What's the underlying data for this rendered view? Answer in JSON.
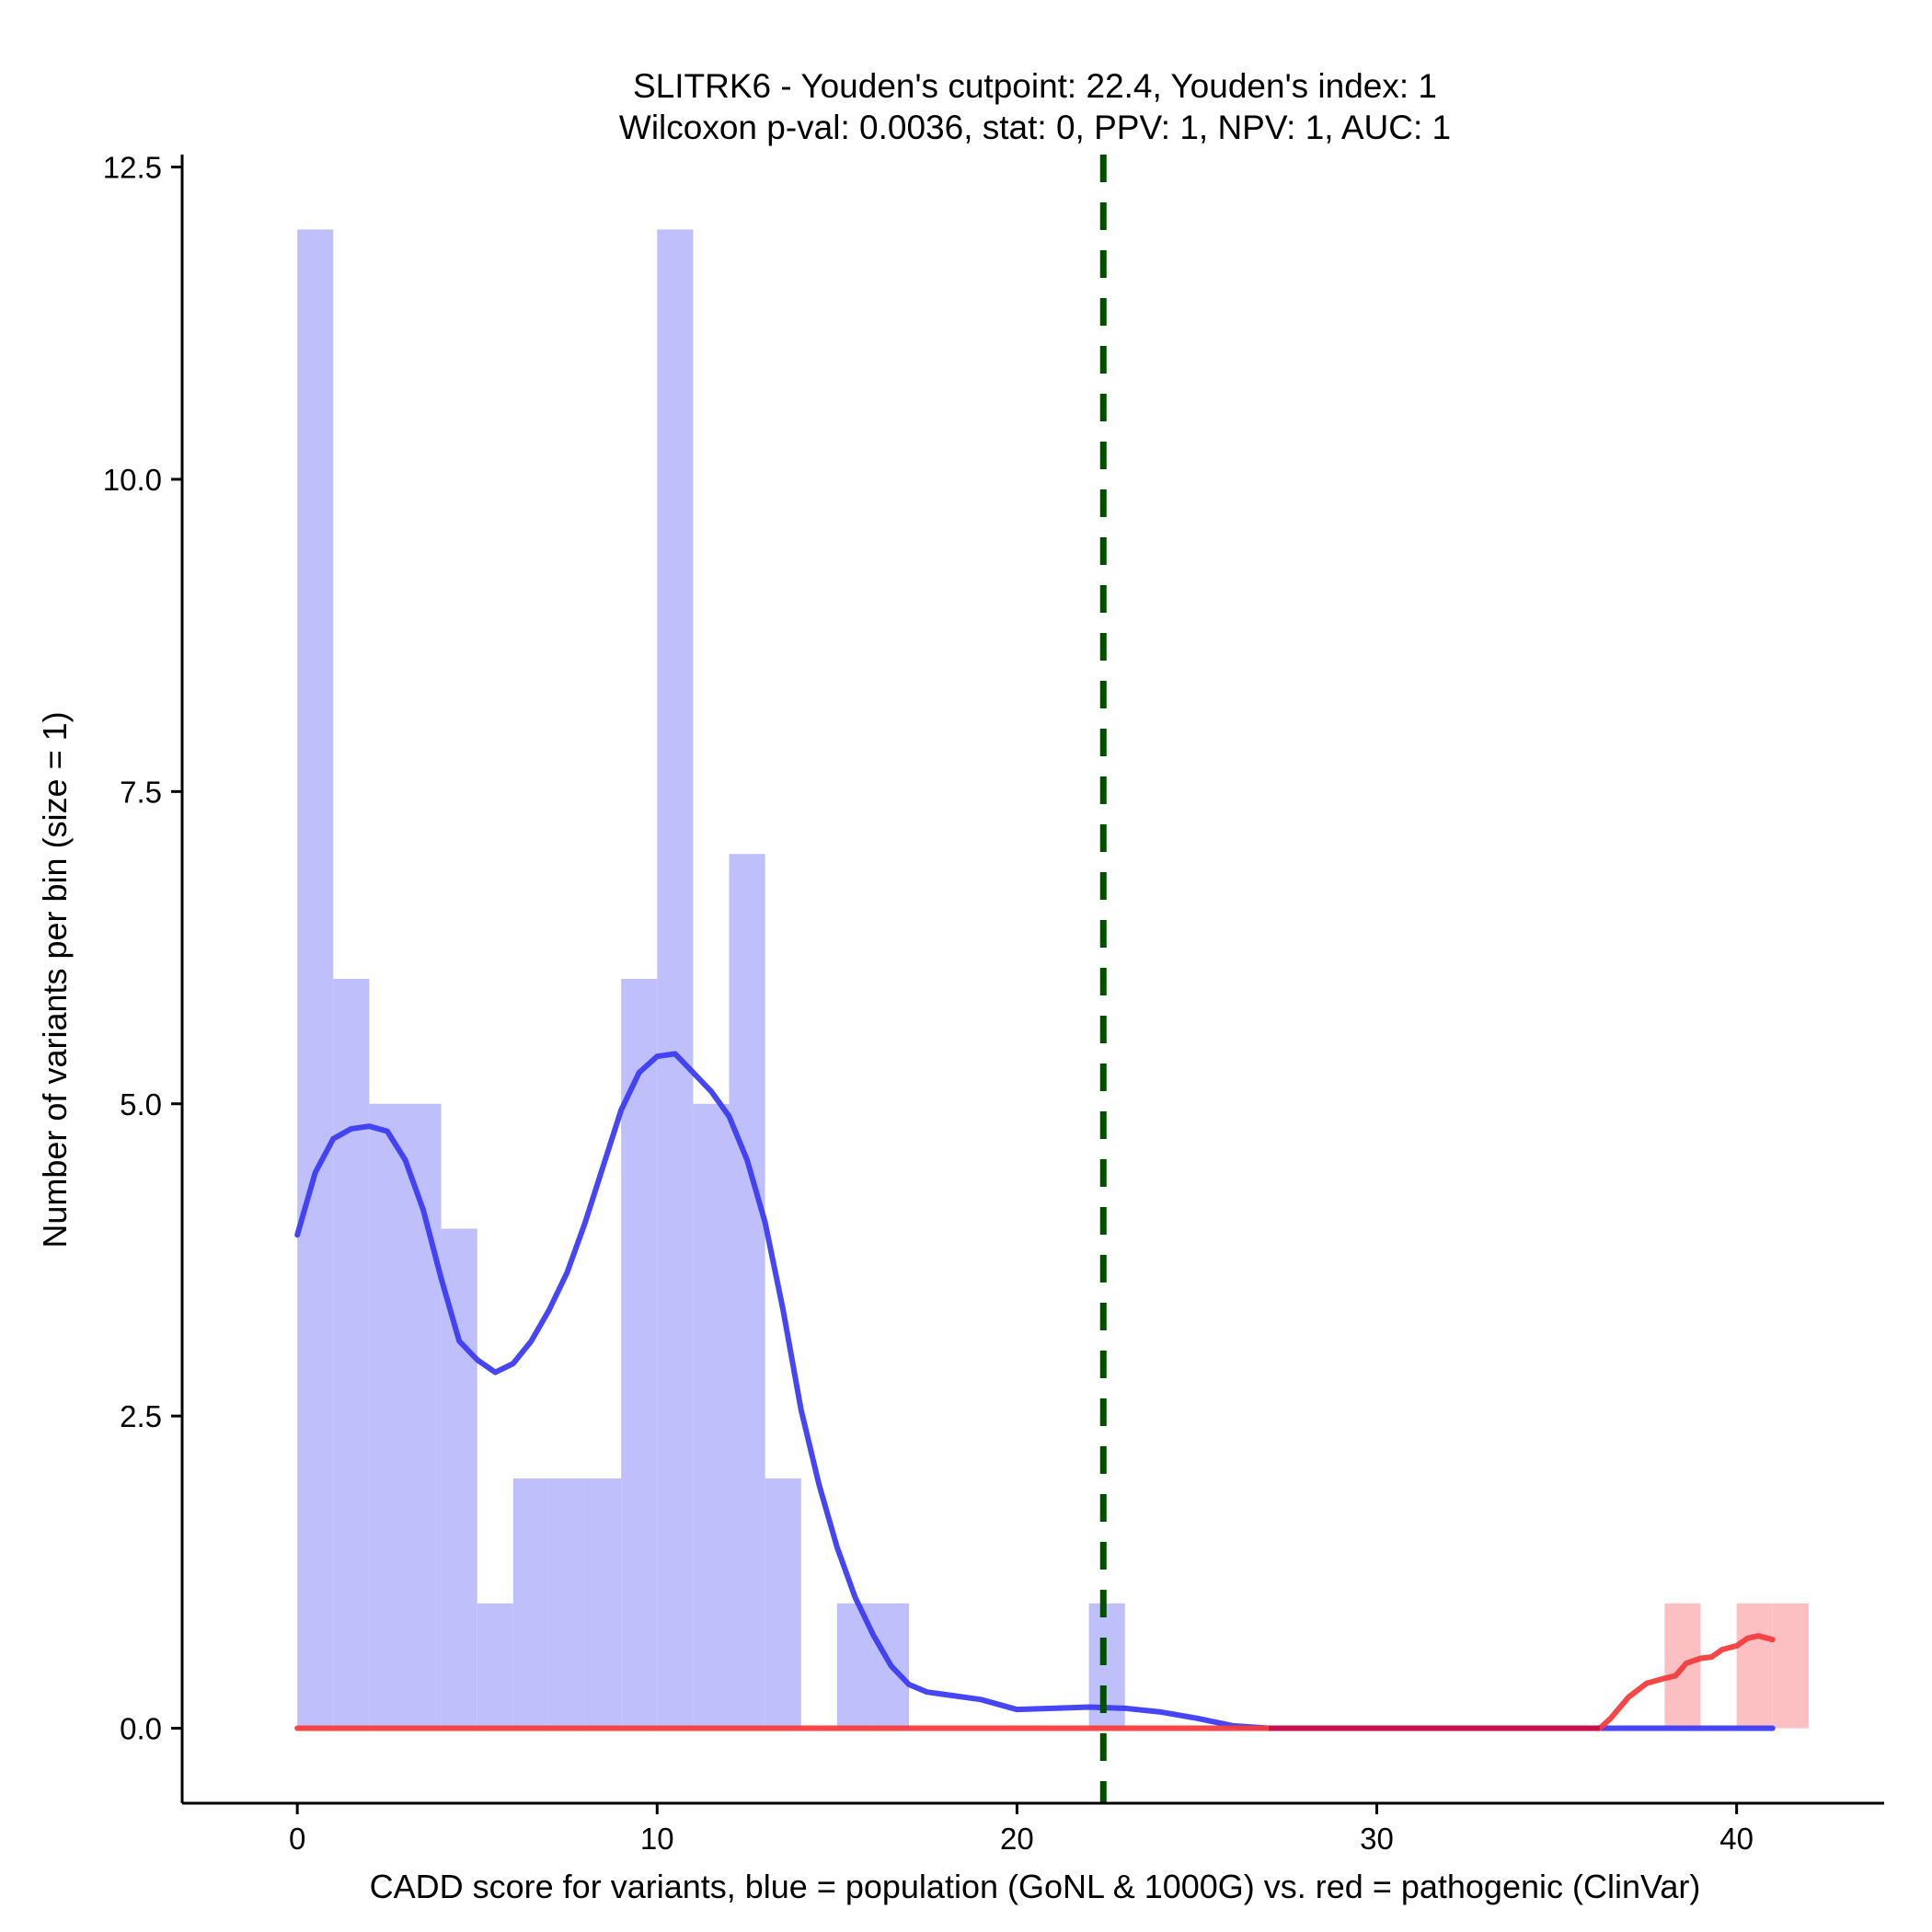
{
  "chart_data": {
    "type": "histogram",
    "title_line1": "SLITRK6 - Youden's cutpoint: 22.4, Youden's index: 1",
    "title_line2": "Wilcoxon p-val: 0.0036, stat: 0, PPV: 1, NPV: 1, AUC: 1",
    "xlabel": "CADD score for variants, blue = population (GoNL & 1000G) vs. red = pathogenic (ClinVar)",
    "ylabel": "Number of variants per bin (size = 1)",
    "xlim": [
      -3.2,
      44.1
    ],
    "ylim": [
      -0.6,
      12.6
    ],
    "x_ticks": [
      0,
      10,
      20,
      30,
      40
    ],
    "x_tick_labels": [
      "0",
      "10",
      "20",
      "30",
      "40"
    ],
    "y_ticks": [
      0,
      2.5,
      5,
      7.5,
      10,
      12.5
    ],
    "y_tick_labels": [
      "0.0",
      "2.5",
      "5.0",
      "7.5",
      "10.0",
      "12.5"
    ],
    "cutpoint": 22.4,
    "bin_size": 1,
    "series": [
      {
        "name": "population (GoNL & 1000G)",
        "color": "#0000ff",
        "bin_starts": [
          0,
          1,
          2,
          3,
          4,
          5,
          6,
          7,
          8,
          9,
          10,
          11,
          12,
          13,
          15,
          16,
          22
        ],
        "counts": [
          12,
          6,
          5,
          5,
          4,
          1,
          2,
          2,
          2,
          6,
          12,
          5,
          7,
          2,
          1,
          1,
          1
        ],
        "density_curve": [
          [
            0,
            3.95
          ],
          [
            0.5,
            4.45
          ],
          [
            1,
            4.72
          ],
          [
            1.5,
            4.8
          ],
          [
            2,
            4.82
          ],
          [
            2.5,
            4.78
          ],
          [
            3,
            4.55
          ],
          [
            3.5,
            4.15
          ],
          [
            4,
            3.6
          ],
          [
            4.5,
            3.1
          ],
          [
            5,
            2.95
          ],
          [
            5.5,
            2.85
          ],
          [
            6,
            2.92
          ],
          [
            6.5,
            3.1
          ],
          [
            7,
            3.35
          ],
          [
            7.5,
            3.65
          ],
          [
            8,
            4.05
          ],
          [
            8.5,
            4.5
          ],
          [
            9,
            4.95
          ],
          [
            9.5,
            5.25
          ],
          [
            10,
            5.38
          ],
          [
            10.5,
            5.4
          ],
          [
            11,
            5.25
          ],
          [
            11.5,
            5.1
          ],
          [
            12,
            4.9
          ],
          [
            12.5,
            4.55
          ],
          [
            13,
            4.05
          ],
          [
            13.5,
            3.35
          ],
          [
            14,
            2.55
          ],
          [
            14.5,
            1.95
          ],
          [
            15,
            1.45
          ],
          [
            15.5,
            1.05
          ],
          [
            16,
            0.75
          ],
          [
            16.5,
            0.5
          ],
          [
            17,
            0.35
          ],
          [
            17.5,
            0.29
          ],
          [
            18,
            0.27
          ],
          [
            19,
            0.23
          ],
          [
            20,
            0.15
          ],
          [
            21,
            0.16
          ],
          [
            22,
            0.17
          ],
          [
            23,
            0.16
          ],
          [
            24,
            0.13
          ],
          [
            25,
            0.08
          ],
          [
            26,
            0.02
          ],
          [
            27,
            0
          ],
          [
            30,
            0
          ],
          [
            35,
            0
          ],
          [
            41,
            0
          ]
        ]
      },
      {
        "name": "pathogenic (ClinVar)",
        "color": "#ff0000",
        "bin_starts": [
          38,
          40,
          41
        ],
        "counts": [
          1,
          1,
          1
        ],
        "density_curve": [
          [
            0,
            0
          ],
          [
            10,
            0
          ],
          [
            20,
            0
          ],
          [
            30,
            0
          ],
          [
            36.2,
            0
          ],
          [
            36.5,
            0.08
          ],
          [
            37,
            0.25
          ],
          [
            37.5,
            0.36
          ],
          [
            38,
            0.4
          ],
          [
            38.3,
            0.42
          ],
          [
            38.6,
            0.52
          ],
          [
            39,
            0.56
          ],
          [
            39.3,
            0.57
          ],
          [
            39.6,
            0.63
          ],
          [
            40,
            0.66
          ],
          [
            40.3,
            0.72
          ],
          [
            40.6,
            0.74
          ],
          [
            41,
            0.71
          ]
        ]
      }
    ]
  }
}
